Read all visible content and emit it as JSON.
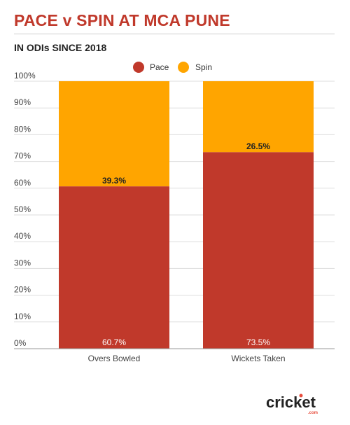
{
  "header": {
    "title": "PACE v SPIN AT MCA PUNE",
    "subtitle": "IN ODIs SINCE 2018"
  },
  "chart_data": {
    "type": "bar",
    "stacked": true,
    "categories": [
      "Overs Bowled",
      "Wickets Taken"
    ],
    "series": [
      {
        "name": "Pace",
        "values": [
          60.7,
          73.5
        ],
        "labels": [
          "60.7%",
          "73.5%"
        ],
        "color": "#c0392b"
      },
      {
        "name": "Spin",
        "values": [
          39.3,
          26.5
        ],
        "labels": [
          "39.3%",
          "26.5%"
        ],
        "color": "#ffa500"
      }
    ],
    "ylim": [
      0,
      100
    ],
    "yticks": [
      0,
      10,
      20,
      30,
      40,
      50,
      60,
      70,
      80,
      90,
      100
    ],
    "ytick_labels": [
      "0%",
      "10%",
      "20%",
      "30%",
      "40%",
      "50%",
      "60%",
      "70%",
      "80%",
      "90%",
      "100%"
    ],
    "grid": true,
    "legend": "top-center"
  },
  "brand": {
    "name": "cricket",
    "suffix": ".com",
    "accent_color": "#e74c3c"
  }
}
